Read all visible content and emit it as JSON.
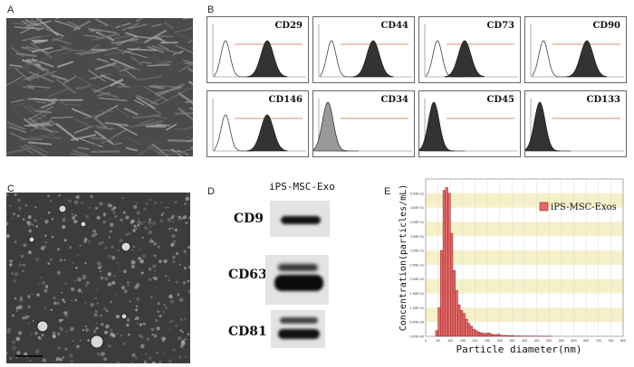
{
  "panels": {
    "a": {
      "letter": "A"
    },
    "b": {
      "letter": "B",
      "markers": [
        "CD29",
        "CD44",
        "CD73",
        "CD90",
        "CD146",
        "CD34",
        "CD45",
        "CD133"
      ]
    },
    "c": {
      "letter": "C"
    },
    "d": {
      "letter": "D",
      "header": "iPS-MSC-Exo",
      "bands": [
        "CD9",
        "CD63",
        "CD81"
      ]
    },
    "e": {
      "letter": "E"
    }
  },
  "chart_data": {
    "type": "bar",
    "ylabel": "Concentration(particles/mL)",
    "xlabel": "Particle diameter(nm)",
    "legend": "iPS-MSC-Exos",
    "legend_position": "top-right",
    "xlim": [
      0,
      800
    ],
    "ylim": [
      0,
      550000000000.0
    ],
    "x_ticks": [
      "0",
      "50",
      "100",
      "150",
      "200",
      "250",
      "300",
      "350",
      "400",
      "450",
      "500",
      "550",
      "600",
      "650",
      "700",
      "750",
      "800"
    ],
    "y_ticks": [
      "0.00E+00",
      "5.00E+10",
      "1.00E+11",
      "1.50E+11",
      "2.00E+11",
      "2.50E+11",
      "3.00E+11",
      "3.50E+11",
      "4.00E+11",
      "4.50E+11",
      "5.00E+11"
    ],
    "bin_width": 10,
    "x": [
      45,
      55,
      65,
      75,
      85,
      95,
      105,
      115,
      125,
      135,
      145,
      155,
      165,
      175,
      185,
      195,
      205,
      215,
      225,
      235,
      245,
      255,
      265,
      275,
      285,
      295,
      305,
      315,
      325,
      335,
      345,
      355,
      365,
      375,
      385,
      395,
      405,
      415,
      425,
      435,
      445,
      455,
      465,
      475,
      485,
      495,
      505
    ],
    "values": [
      20000000000.0,
      100000000000.0,
      300000000000.0,
      510000000000.0,
      520000000000.0,
      500000000000.0,
      360000000000.0,
      230000000000.0,
      160000000000.0,
      110000000000.0,
      90000000000.0,
      80000000000.0,
      60000000000.0,
      45000000000.0,
      35000000000.0,
      25000000000.0,
      20000000000.0,
      15000000000.0,
      12000000000.0,
      10000000000.0,
      10000000000.0,
      12000000000.0,
      8000000000.0,
      6000000000.0,
      5000000000.0,
      7000000000.0,
      4000000000.0,
      3000000000.0,
      3000000000.0,
      2000000000.0,
      2000000000.0,
      2000000000.0,
      1000000000.0,
      1500000000.0,
      1000000000.0,
      1000000000.0,
      800000000.0,
      1000000000.0,
      600000000.0,
      500000000.0,
      800000000.0,
      400000000.0,
      500000000.0,
      300000000.0,
      400000000.0,
      300000000.0,
      200000000.0
    ],
    "bar_color": "#e06a6a",
    "bar_edge": "#9a2222",
    "band_color": "#f5f0c8"
  }
}
